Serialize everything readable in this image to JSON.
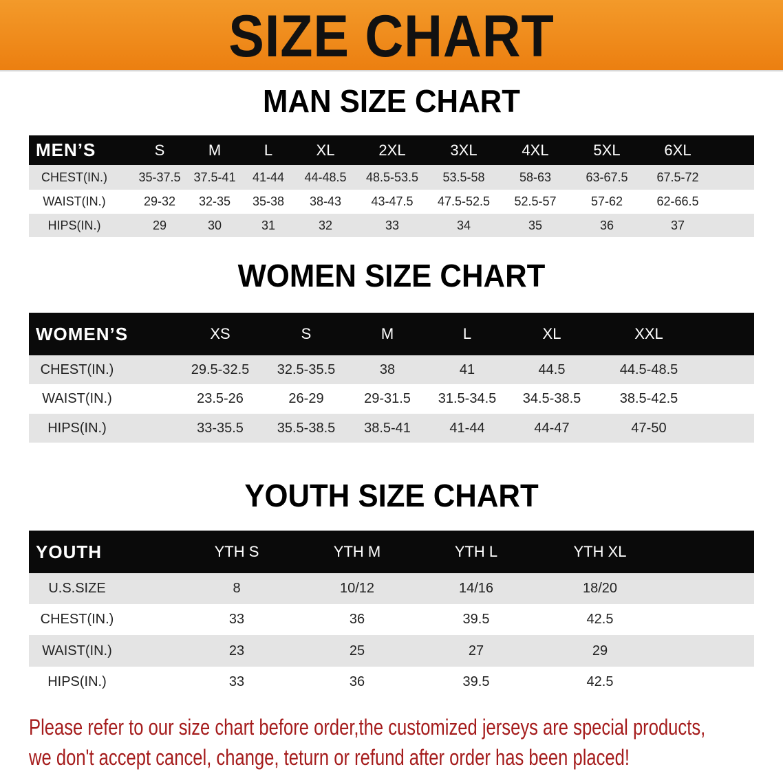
{
  "title": "SIZE CHART",
  "colors": {
    "banner": "#ee8516",
    "header_row": "#0a0a0a",
    "note": "#a51c1c"
  },
  "men": {
    "title": "MAN SIZE CHART",
    "columns": [
      "MEN’S",
      "S",
      "M",
      "L",
      "XL",
      "2XL",
      "3XL",
      "4XL",
      "5XL",
      "6XL"
    ],
    "rows": [
      [
        "CHEST(IN.)",
        "35-37.5",
        "37.5-41",
        "41-44",
        "44-48.5",
        "48.5-53.5",
        "53.5-58",
        "58-63",
        "63-67.5",
        "67.5-72"
      ],
      [
        "WAIST(IN.)",
        "29-32",
        "32-35",
        "35-38",
        "38-43",
        "43-47.5",
        "47.5-52.5",
        "52.5-57",
        "57-62",
        "62-66.5"
      ],
      [
        "HIPS(IN.)",
        "29",
        "30",
        "31",
        "32",
        "33",
        "34",
        "35",
        "36",
        "37"
      ]
    ]
  },
  "women": {
    "title": "WOMEN SIZE CHART",
    "columns": [
      "WOMEN’S",
      "XS",
      "S",
      "M",
      "L",
      "XL",
      "XXL"
    ],
    "rows": [
      [
        "CHEST(IN.)",
        "29.5-32.5",
        "32.5-35.5",
        "38",
        "41",
        "44.5",
        "44.5-48.5"
      ],
      [
        "WAIST(IN.)",
        "23.5-26",
        "26-29",
        "29-31.5",
        "31.5-34.5",
        "34.5-38.5",
        "38.5-42.5"
      ],
      [
        "HIPS(IN.)",
        "33-35.5",
        "35.5-38.5",
        "38.5-41",
        "41-44",
        "44-47",
        "47-50"
      ]
    ]
  },
  "youth": {
    "title": "YOUTH SIZE CHART",
    "columns": [
      "YOUTH",
      "YTH S",
      "YTH M",
      "YTH L",
      "YTH XL"
    ],
    "rows": [
      [
        "U.S.SIZE",
        "8",
        "10/12",
        "14/16",
        "18/20"
      ],
      [
        "CHEST(IN.)",
        "33",
        "36",
        "39.5",
        "42.5"
      ],
      [
        "WAIST(IN.)",
        "23",
        "25",
        "27",
        "29"
      ],
      [
        "HIPS(IN.)",
        "33",
        "36",
        "39.5",
        "42.5"
      ]
    ]
  },
  "note": {
    "line1": "Please refer to our size chart before order,the customized jerseys are special products,",
    "line2": "we don't accept cancel, change, teturn or refund after order has been placed!"
  }
}
